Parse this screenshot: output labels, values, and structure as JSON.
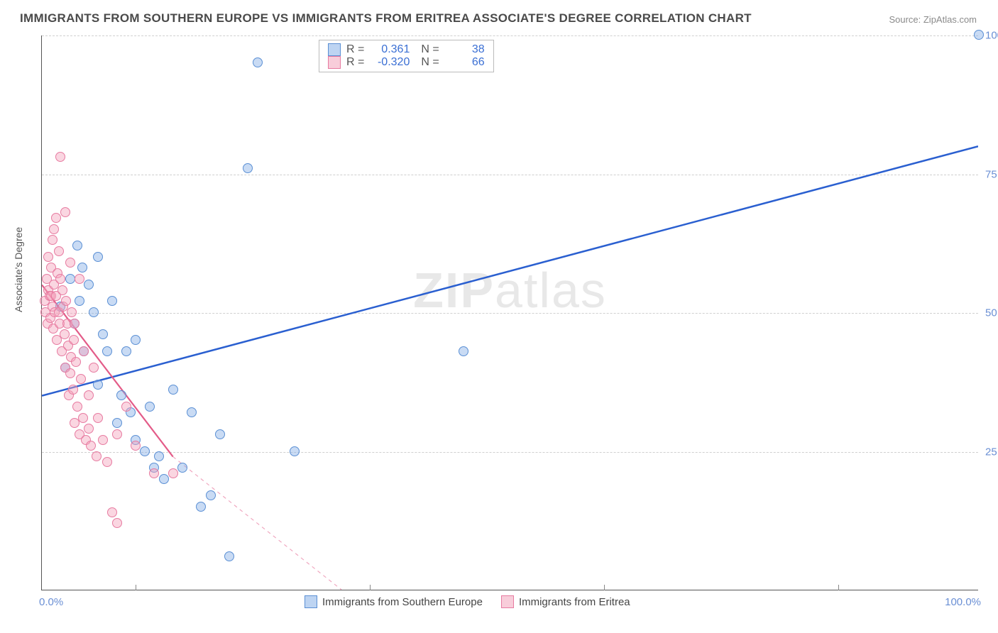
{
  "title": "IMMIGRANTS FROM SOUTHERN EUROPE VS IMMIGRANTS FROM ERITREA ASSOCIATE'S DEGREE CORRELATION CHART",
  "source": "Source: ZipAtlas.com",
  "watermark": {
    "bold": "ZIP",
    "rest": "atlas"
  },
  "chart": {
    "type": "scatter",
    "background_color": "#ffffff",
    "grid_color": "#cfcfcf",
    "axis_color": "#555555",
    "xlim": [
      0,
      100
    ],
    "ylim": [
      0,
      100
    ],
    "ytick_step": 25,
    "ytick_labels": [
      "25.0%",
      "50.0%",
      "75.0%",
      "100.0%"
    ],
    "xmin_label": "0.0%",
    "xmax_label": "100.0%",
    "ylabel": "Associate's Degree",
    "ylabel_fontsize": 14,
    "tick_fontsize": 15,
    "tick_color": "#6a8fd4",
    "marker_size": 14,
    "vertical_ticks_x": [
      10,
      35,
      60,
      85
    ],
    "series": [
      {
        "name": "Immigrants from Southern Europe",
        "label": "Immigrants from Southern Europe",
        "color": "#5a8fd4",
        "fill": "rgba(135,176,231,0.45)",
        "r_value": "0.361",
        "n_value": "38",
        "trend": {
          "x1": 0,
          "y1": 35,
          "x2": 100,
          "y2": 80,
          "width": 2.5,
          "dash": "none"
        },
        "points": [
          [
            2,
            51
          ],
          [
            2.5,
            40
          ],
          [
            3,
            56
          ],
          [
            3.5,
            48
          ],
          [
            3.8,
            62
          ],
          [
            4,
            52
          ],
          [
            4.3,
            58
          ],
          [
            4.5,
            43
          ],
          [
            5,
            55
          ],
          [
            5.5,
            50
          ],
          [
            6,
            37
          ],
          [
            6,
            60
          ],
          [
            6.5,
            46
          ],
          [
            7,
            43
          ],
          [
            7.5,
            52
          ],
          [
            8,
            30
          ],
          [
            8.5,
            35
          ],
          [
            9,
            43
          ],
          [
            9.5,
            32
          ],
          [
            10,
            27
          ],
          [
            10,
            45
          ],
          [
            11,
            25
          ],
          [
            11.5,
            33
          ],
          [
            12,
            22
          ],
          [
            12.5,
            24
          ],
          [
            13,
            20
          ],
          [
            14,
            36
          ],
          [
            15,
            22
          ],
          [
            16,
            32
          ],
          [
            17,
            15
          ],
          [
            18,
            17
          ],
          [
            19,
            28
          ],
          [
            20,
            6
          ],
          [
            22,
            76
          ],
          [
            23,
            95
          ],
          [
            27,
            25
          ],
          [
            45,
            43
          ],
          [
            100,
            100
          ]
        ]
      },
      {
        "name": "Immigrants from Eritrea",
        "label": "Immigrants from Eritrea",
        "color": "#e77aa0",
        "fill": "rgba(243,164,188,0.45)",
        "r_value": "-0.320",
        "n_value": "66",
        "trend": {
          "x1": 0,
          "y1": 55,
          "x2": 35,
          "y2": 0,
          "width": 2.2,
          "dash": "none",
          "extend_dash_to_x": 35
        },
        "trend_dashed": {
          "x1": 14,
          "y1": 24,
          "x2": 32,
          "y2": -2,
          "width": 1.2
        },
        "points": [
          [
            0.3,
            52
          ],
          [
            0.4,
            50
          ],
          [
            0.5,
            56
          ],
          [
            0.6,
            48
          ],
          [
            0.7,
            54
          ],
          [
            0.7,
            60
          ],
          [
            0.8,
            53
          ],
          [
            0.9,
            49
          ],
          [
            1,
            58
          ],
          [
            1,
            53
          ],
          [
            1.1,
            63
          ],
          [
            1.1,
            51
          ],
          [
            1.2,
            47
          ],
          [
            1.3,
            65
          ],
          [
            1.3,
            55
          ],
          [
            1.4,
            50
          ],
          [
            1.5,
            67
          ],
          [
            1.5,
            53
          ],
          [
            1.6,
            45
          ],
          [
            1.7,
            57
          ],
          [
            1.8,
            50
          ],
          [
            1.8,
            61
          ],
          [
            1.9,
            48
          ],
          [
            2,
            78
          ],
          [
            2,
            56
          ],
          [
            2.1,
            43
          ],
          [
            2.2,
            54
          ],
          [
            2.3,
            51
          ],
          [
            2.4,
            46
          ],
          [
            2.5,
            68
          ],
          [
            2.5,
            40
          ],
          [
            2.6,
            52
          ],
          [
            2.7,
            48
          ],
          [
            2.8,
            44
          ],
          [
            2.9,
            35
          ],
          [
            3,
            39
          ],
          [
            3,
            59
          ],
          [
            3.1,
            42
          ],
          [
            3.2,
            50
          ],
          [
            3.3,
            36
          ],
          [
            3.4,
            45
          ],
          [
            3.5,
            30
          ],
          [
            3.5,
            48
          ],
          [
            3.6,
            41
          ],
          [
            3.8,
            33
          ],
          [
            4,
            28
          ],
          [
            4,
            56
          ],
          [
            4.2,
            38
          ],
          [
            4.4,
            31
          ],
          [
            4.5,
            43
          ],
          [
            4.7,
            27
          ],
          [
            5,
            29
          ],
          [
            5,
            35
          ],
          [
            5.2,
            26
          ],
          [
            5.5,
            40
          ],
          [
            5.8,
            24
          ],
          [
            6,
            31
          ],
          [
            6.5,
            27
          ],
          [
            7,
            23
          ],
          [
            7.5,
            14
          ],
          [
            8,
            28
          ],
          [
            8,
            12
          ],
          [
            9,
            33
          ],
          [
            10,
            26
          ],
          [
            12,
            21
          ],
          [
            14,
            21
          ]
        ]
      }
    ],
    "legend_top": {
      "r_label": "R =",
      "n_label": "N ="
    }
  }
}
